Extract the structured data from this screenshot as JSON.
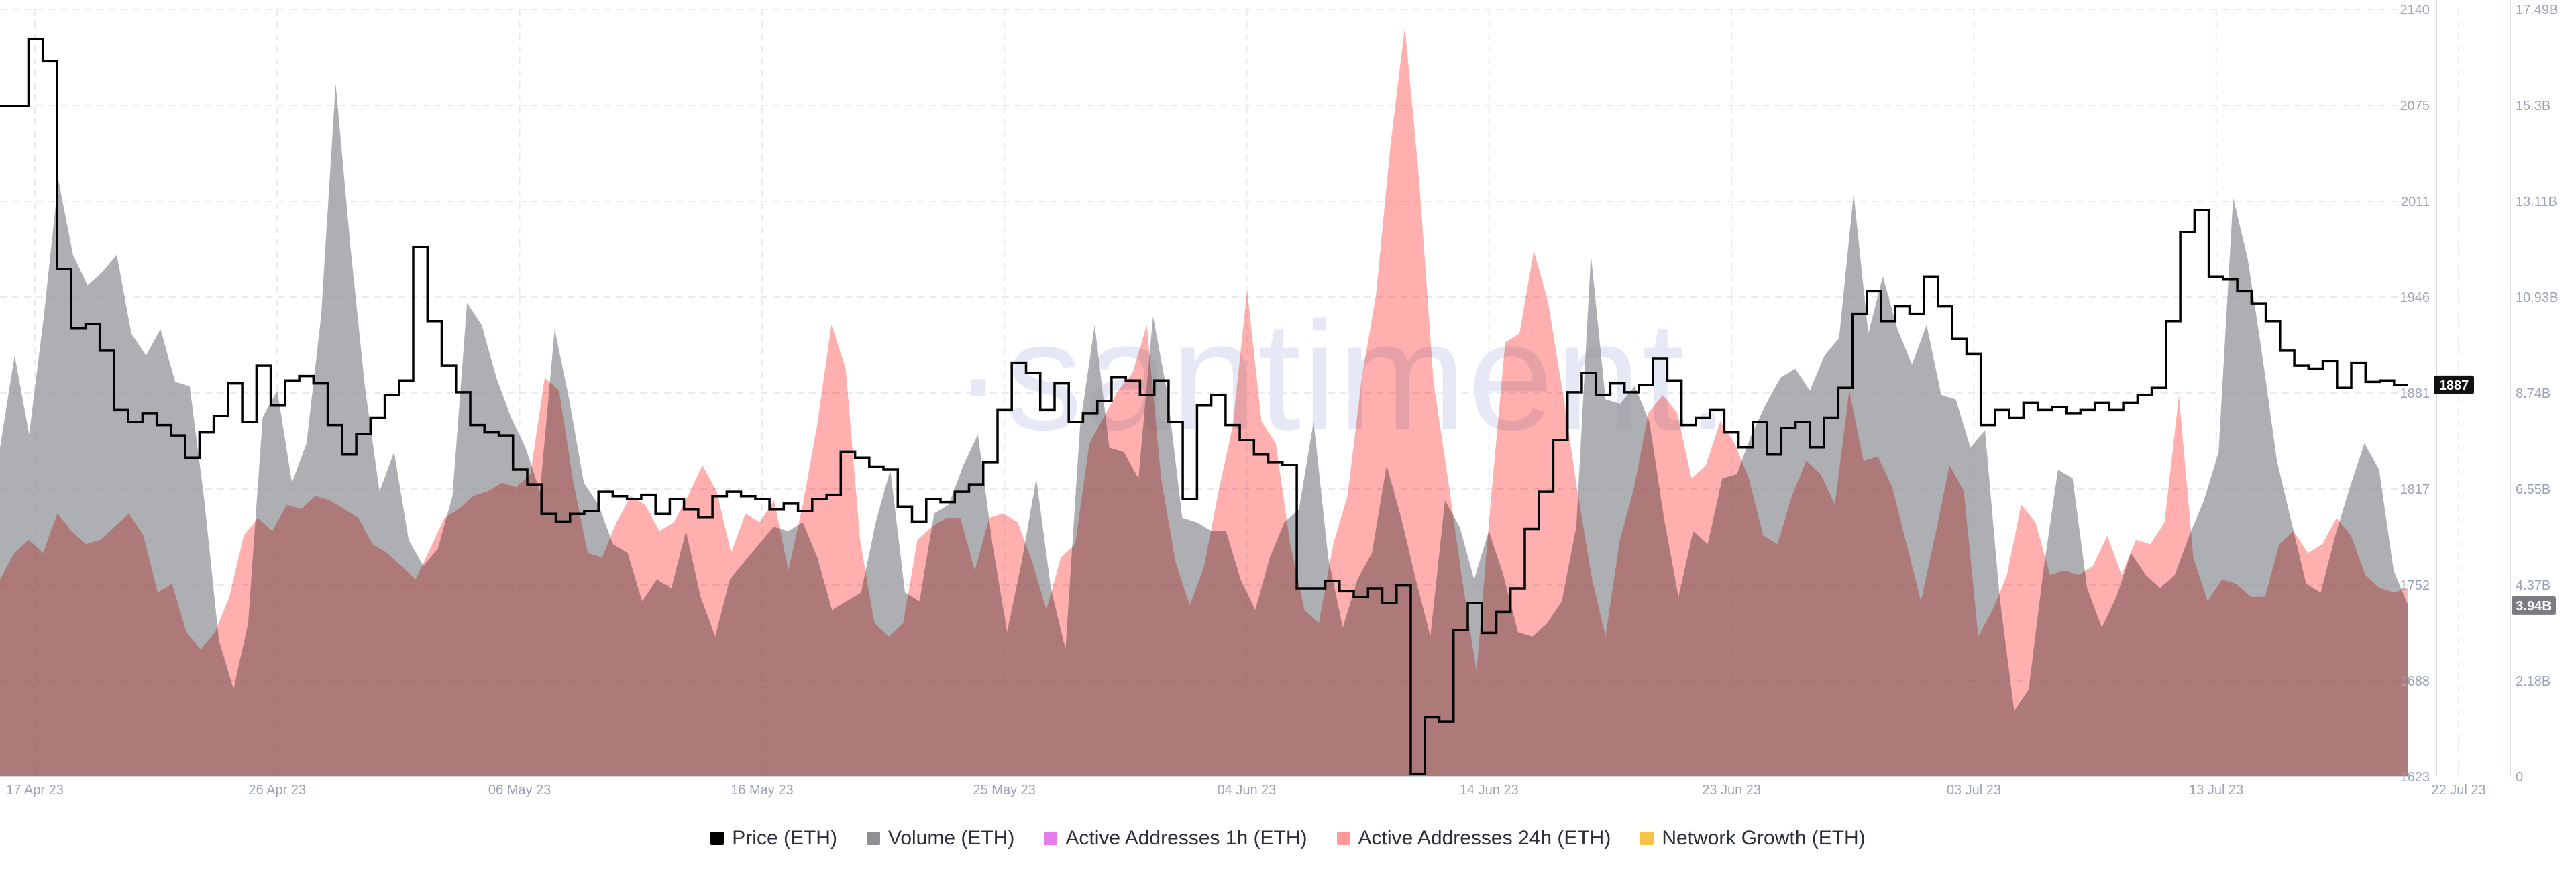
{
  "watermark": "·santiment.",
  "chart_data": {
    "type": "line",
    "title": "",
    "x_ticks": [
      "17 Apr 23",
      "26 Apr 23",
      "06 May 23",
      "16 May 23",
      "25 May 23",
      "04 Jun 23",
      "14 Jun 23",
      "23 Jun 23",
      "03 Jul 23",
      "13 Jul 23",
      "22 Jul 23"
    ],
    "x_range": [
      "17 Apr 23",
      "22 Jul 23"
    ],
    "price_axis": {
      "label": "Price (ETH)",
      "ticks": [
        "2140",
        "2075",
        "2011",
        "1946",
        "1881",
        "1817",
        "1752",
        "1688",
        "1623"
      ],
      "range": [
        1623,
        2140
      ]
    },
    "volume_axis": {
      "label": "Volume (ETH)",
      "ticks": [
        "17.49B",
        "15.3B",
        "13.11B",
        "10.93B",
        "8.74B",
        "6.55B",
        "4.37B",
        "2.18B",
        "0"
      ],
      "range": [
        0,
        17.49
      ]
    },
    "current_price_label": "1887",
    "current_volume_label": "3.94B",
    "grid": true,
    "legend_position": "bottom",
    "series": [
      {
        "name": "Price (ETH)",
        "color": "#000000",
        "style": "step-line",
        "axis": "price",
        "values": [
          2075,
          2075,
          2120,
          2105,
          1965,
          1925,
          1928,
          1910,
          1870,
          1862,
          1868,
          1860,
          1853,
          1838,
          1855,
          1866,
          1888,
          1862,
          1900,
          1873,
          1890,
          1893,
          1888,
          1860,
          1840,
          1854,
          1865,
          1880,
          1890,
          1980,
          1930,
          1900,
          1882,
          1860,
          1855,
          1853,
          1830,
          1820,
          1800,
          1795,
          1800,
          1802,
          1815,
          1812,
          1810,
          1813,
          1800,
          1810,
          1803,
          1798,
          1812,
          1815,
          1812,
          1810,
          1803,
          1807,
          1802,
          1810,
          1813,
          1842,
          1838,
          1832,
          1830,
          1805,
          1795,
          1810,
          1808,
          1815,
          1820,
          1835,
          1870,
          1902,
          1895,
          1870,
          1888,
          1862,
          1868,
          1876,
          1892,
          1890,
          1880,
          1890,
          1862,
          1810,
          1873,
          1880,
          1860,
          1850,
          1840,
          1835,
          1833,
          1750,
          1750,
          1755,
          1748,
          1744,
          1750,
          1740,
          1752,
          1625,
          1663,
          1660,
          1722,
          1740,
          1720,
          1734,
          1750,
          1790,
          1815,
          1850,
          1882,
          1895,
          1880,
          1888,
          1882,
          1887,
          1905,
          1890,
          1860,
          1865,
          1870,
          1855,
          1845,
          1862,
          1840,
          1858,
          1862,
          1845,
          1865,
          1885,
          1935,
          1950,
          1930,
          1940,
          1935,
          1960,
          1940,
          1918,
          1908,
          1860,
          1870,
          1865,
          1875,
          1870,
          1872,
          1868,
          1870,
          1875,
          1870,
          1875,
          1880,
          1885,
          1930,
          1990,
          2005,
          1960,
          1958,
          1950,
          1942,
          1930,
          1910,
          1900,
          1898,
          1903,
          1885,
          1902,
          1889,
          1890,
          1887
        ]
      },
      {
        "name": "Volume (ETH)",
        "color": "#8f9094",
        "style": "area",
        "axis": "volume",
        "values": [
          7.5,
          9.6,
          7.8,
          10.5,
          13.6,
          11.9,
          11.2,
          11.5,
          11.9,
          10.1,
          9.6,
          10.2,
          9.0,
          8.9,
          6.3,
          3.1,
          2.0,
          3.5,
          8.2,
          8.8,
          6.7,
          7.6,
          10.5,
          15.8,
          12.1,
          8.9,
          6.5,
          7.4,
          5.4,
          4.8,
          5.2,
          6.4,
          10.8,
          10.3,
          9.1,
          8.2,
          7.5,
          6.5,
          10.2,
          8.6,
          6.7,
          6.2,
          5.3,
          5.1,
          4.0,
          4.5,
          4.3,
          5.6,
          4.1,
          3.2,
          4.5,
          4.9,
          5.3,
          5.7,
          5.6,
          5.8,
          5.0,
          3.8,
          4.0,
          4.2,
          5.8,
          7.0,
          4.2,
          4.0,
          6.0,
          6.2,
          7.1,
          7.8,
          5.3,
          3.3,
          4.9,
          6.8,
          4.3,
          2.9,
          8.0,
          10.3,
          7.5,
          7.4,
          6.8,
          10.5,
          8.7,
          5.9,
          5.8,
          5.6,
          5.6,
          4.5,
          3.8,
          5.0,
          5.8,
          6.1,
          8.1,
          5.0,
          3.4,
          4.5,
          5.1,
          7.1,
          5.9,
          4.5,
          3.2,
          6.3,
          5.7,
          4.5,
          5.6,
          4.6,
          3.3,
          3.2,
          3.5,
          4.0,
          5.7,
          11.9,
          8.6,
          8.5,
          8.9,
          8.1,
          5.9,
          4.1,
          5.6,
          5.3,
          6.8,
          6.9,
          7.8,
          8.5,
          9.1,
          9.3,
          8.8,
          9.6,
          10.0,
          13.3,
          10.1,
          11.4,
          10.2,
          9.4,
          10.3,
          8.7,
          8.6,
          7.5,
          7.9,
          4.1,
          1.5,
          2.0,
          4.7,
          7.0,
          6.8,
          4.3,
          3.4,
          4.1,
          5.1,
          4.6,
          4.3,
          4.6,
          5.5,
          6.3,
          7.4,
          13.2,
          11.8,
          9.6,
          7.2,
          5.8,
          4.4,
          4.2,
          5.5,
          6.6,
          7.6,
          7.0,
          4.7,
          3.9
        ]
      },
      {
        "name": "Active Addresses 1h (ETH)",
        "color": "#e67ce8",
        "style": "area",
        "axis": "none",
        "values": []
      },
      {
        "name": "Active Addresses 24h (ETH)",
        "color": "#ff9a97",
        "style": "area",
        "axis": "volume",
        "values": [
          4.5,
          5.1,
          5.4,
          5.1,
          6.0,
          5.6,
          5.3,
          5.4,
          5.7,
          6.0,
          5.5,
          4.2,
          4.4,
          3.3,
          2.9,
          3.3,
          4.1,
          5.5,
          5.9,
          5.6,
          6.2,
          6.1,
          6.4,
          6.3,
          6.1,
          5.9,
          5.3,
          5.1,
          4.8,
          4.5,
          5.2,
          5.9,
          6.1,
          6.4,
          6.5,
          6.7,
          6.6,
          6.9,
          9.1,
          8.8,
          6.7,
          5.1,
          5.0,
          5.8,
          6.4,
          6.2,
          5.6,
          5.8,
          6.4,
          7.1,
          6.5,
          5.1,
          6.0,
          5.8,
          6.3,
          4.7,
          6.2,
          8.0,
          10.3,
          9.3,
          5.4,
          3.5,
          3.2,
          3.5,
          5.4,
          5.7,
          5.9,
          5.9,
          4.7,
          5.9,
          6.0,
          5.8,
          4.9,
          3.8,
          5.0,
          5.3,
          7.6,
          8.2,
          8.8,
          9.2,
          10.3,
          6.8,
          4.9,
          3.9,
          4.8,
          6.5,
          8.0,
          11.1,
          8.1,
          7.6,
          5.3,
          3.8,
          3.5,
          5.3,
          6.4,
          9.1,
          11.0,
          14.4,
          17.1,
          13.6,
          9.0,
          6.8,
          4.5,
          2.4,
          6.3,
          9.9,
          10.1,
          12.0,
          10.8,
          8.8,
          6.6,
          4.6,
          3.2,
          5.4,
          6.6,
          8.3,
          8.7,
          8.3,
          6.8,
          7.1,
          8.1,
          7.6,
          6.8,
          5.5,
          5.3,
          6.4,
          7.2,
          6.9,
          6.2,
          8.8,
          7.2,
          7.3,
          6.6,
          5.3,
          4.0,
          5.5,
          7.1,
          6.5,
          3.2,
          3.8,
          4.6,
          6.2,
          5.8,
          4.6,
          4.7,
          4.6,
          4.8,
          5.5,
          4.6,
          5.4,
          5.3,
          5.8,
          8.7,
          5.0,
          4.0,
          4.5,
          4.4,
          4.1,
          4.1,
          5.3,
          5.6,
          5.1,
          5.3,
          5.9,
          5.5,
          4.6,
          4.3,
          4.2,
          4.3
        ]
      },
      {
        "name": "Network Growth (ETH)",
        "color": "#f7c34b",
        "style": "area",
        "axis": "none",
        "values": []
      }
    ]
  }
}
